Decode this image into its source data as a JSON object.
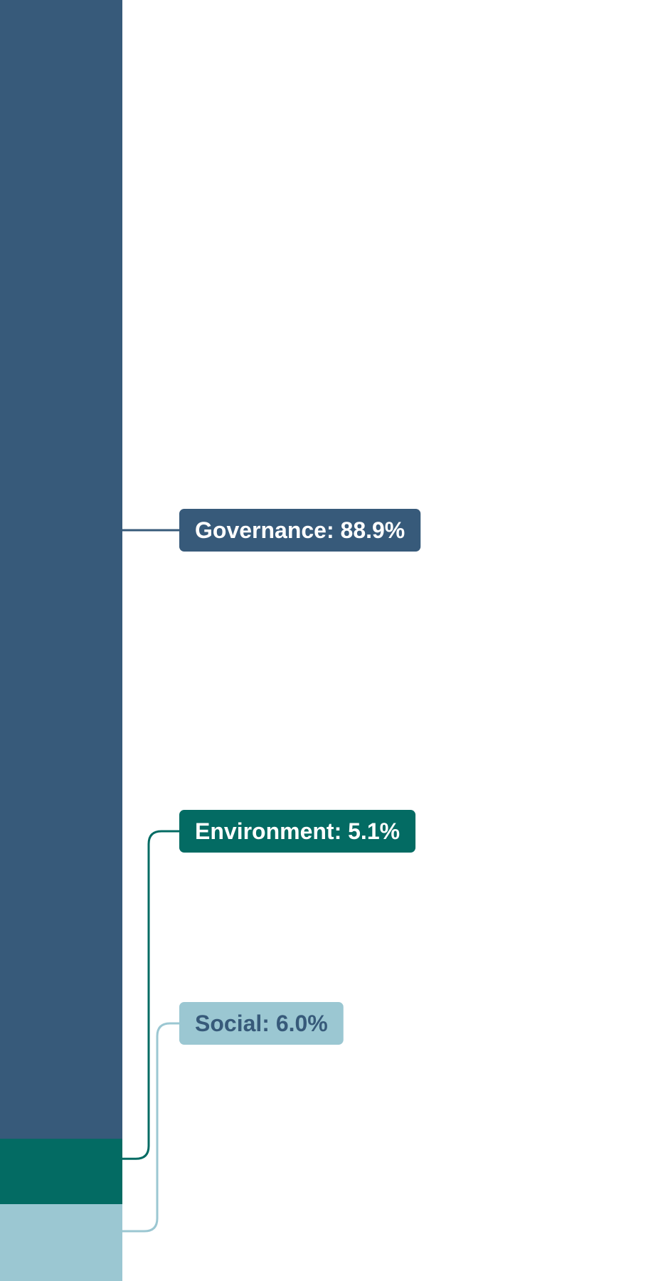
{
  "chart_data": {
    "type": "bar",
    "stacked": true,
    "orientation": "vertical",
    "unit": "%",
    "legend": "none",
    "grid": false,
    "ylim": [
      0,
      100
    ],
    "series": [
      {
        "name": "Governance",
        "value": 88.9,
        "label": "Governance: 88.9%",
        "color": "#375a7a",
        "label_bg": "#375a7a",
        "label_fg": "#ffffff"
      },
      {
        "name": "Environment",
        "value": 5.1,
        "label": "Environment: 5.1%",
        "color": "#036b63",
        "label_bg": "#036b63",
        "label_fg": "#ffffff"
      },
      {
        "name": "Social",
        "value": 6.0,
        "label": "Social: 6.0%",
        "color": "#9bc7d2",
        "label_bg": "#9bc7d2",
        "label_fg": "#375a7a"
      }
    ]
  }
}
